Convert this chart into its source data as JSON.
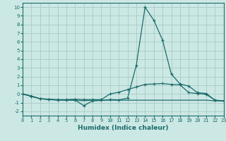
{
  "xlabel": "Humidex (Indice chaleur)",
  "bg_color": "#cce8e4",
  "grid_color": "#aacfca",
  "line_color": "#1a6b6b",
  "x_data": [
    0,
    1,
    2,
    3,
    4,
    5,
    6,
    7,
    8,
    9,
    10,
    11,
    12,
    13,
    14,
    15,
    16,
    17,
    18,
    19,
    20,
    21,
    22,
    23
  ],
  "line1": [
    0.0,
    -0.3,
    -0.55,
    -0.6,
    -0.65,
    -0.65,
    -0.6,
    -0.65,
    -0.65,
    -0.65,
    0.0,
    0.2,
    0.5,
    0.8,
    1.1,
    1.15,
    1.2,
    1.1,
    1.05,
    0.15,
    0.05,
    -0.05,
    -0.72,
    -0.8
  ],
  "line2": [
    0.0,
    -0.25,
    -0.55,
    -0.65,
    -0.7,
    -0.72,
    -0.7,
    -1.35,
    -0.8,
    -0.75,
    -0.65,
    -0.68,
    -0.5,
    3.3,
    10.0,
    8.5,
    6.2,
    2.3,
    1.15,
    0.9,
    0.15,
    0.05,
    -0.72,
    -0.8
  ],
  "line3": [
    0.0,
    -0.25,
    -0.55,
    -0.65,
    -0.7,
    -0.72,
    -0.72,
    -0.78,
    -0.72,
    -0.72,
    -0.72,
    -0.72,
    -0.72,
    -0.72,
    -0.72,
    -0.72,
    -0.72,
    -0.72,
    -0.72,
    -0.72,
    -0.72,
    -0.72,
    -0.8,
    -0.8
  ],
  "xlim": [
    0,
    23
  ],
  "ylim": [
    -2.5,
    10.5
  ],
  "yticks": [
    -2,
    -1,
    0,
    1,
    2,
    3,
    4,
    5,
    6,
    7,
    8,
    9,
    10
  ],
  "xticks": [
    0,
    1,
    2,
    3,
    4,
    5,
    6,
    7,
    8,
    9,
    10,
    11,
    12,
    13,
    14,
    15,
    16,
    17,
    18,
    19,
    20,
    21,
    22,
    23
  ],
  "xlabel_fontsize": 6.5,
  "tick_fontsize": 5.0
}
